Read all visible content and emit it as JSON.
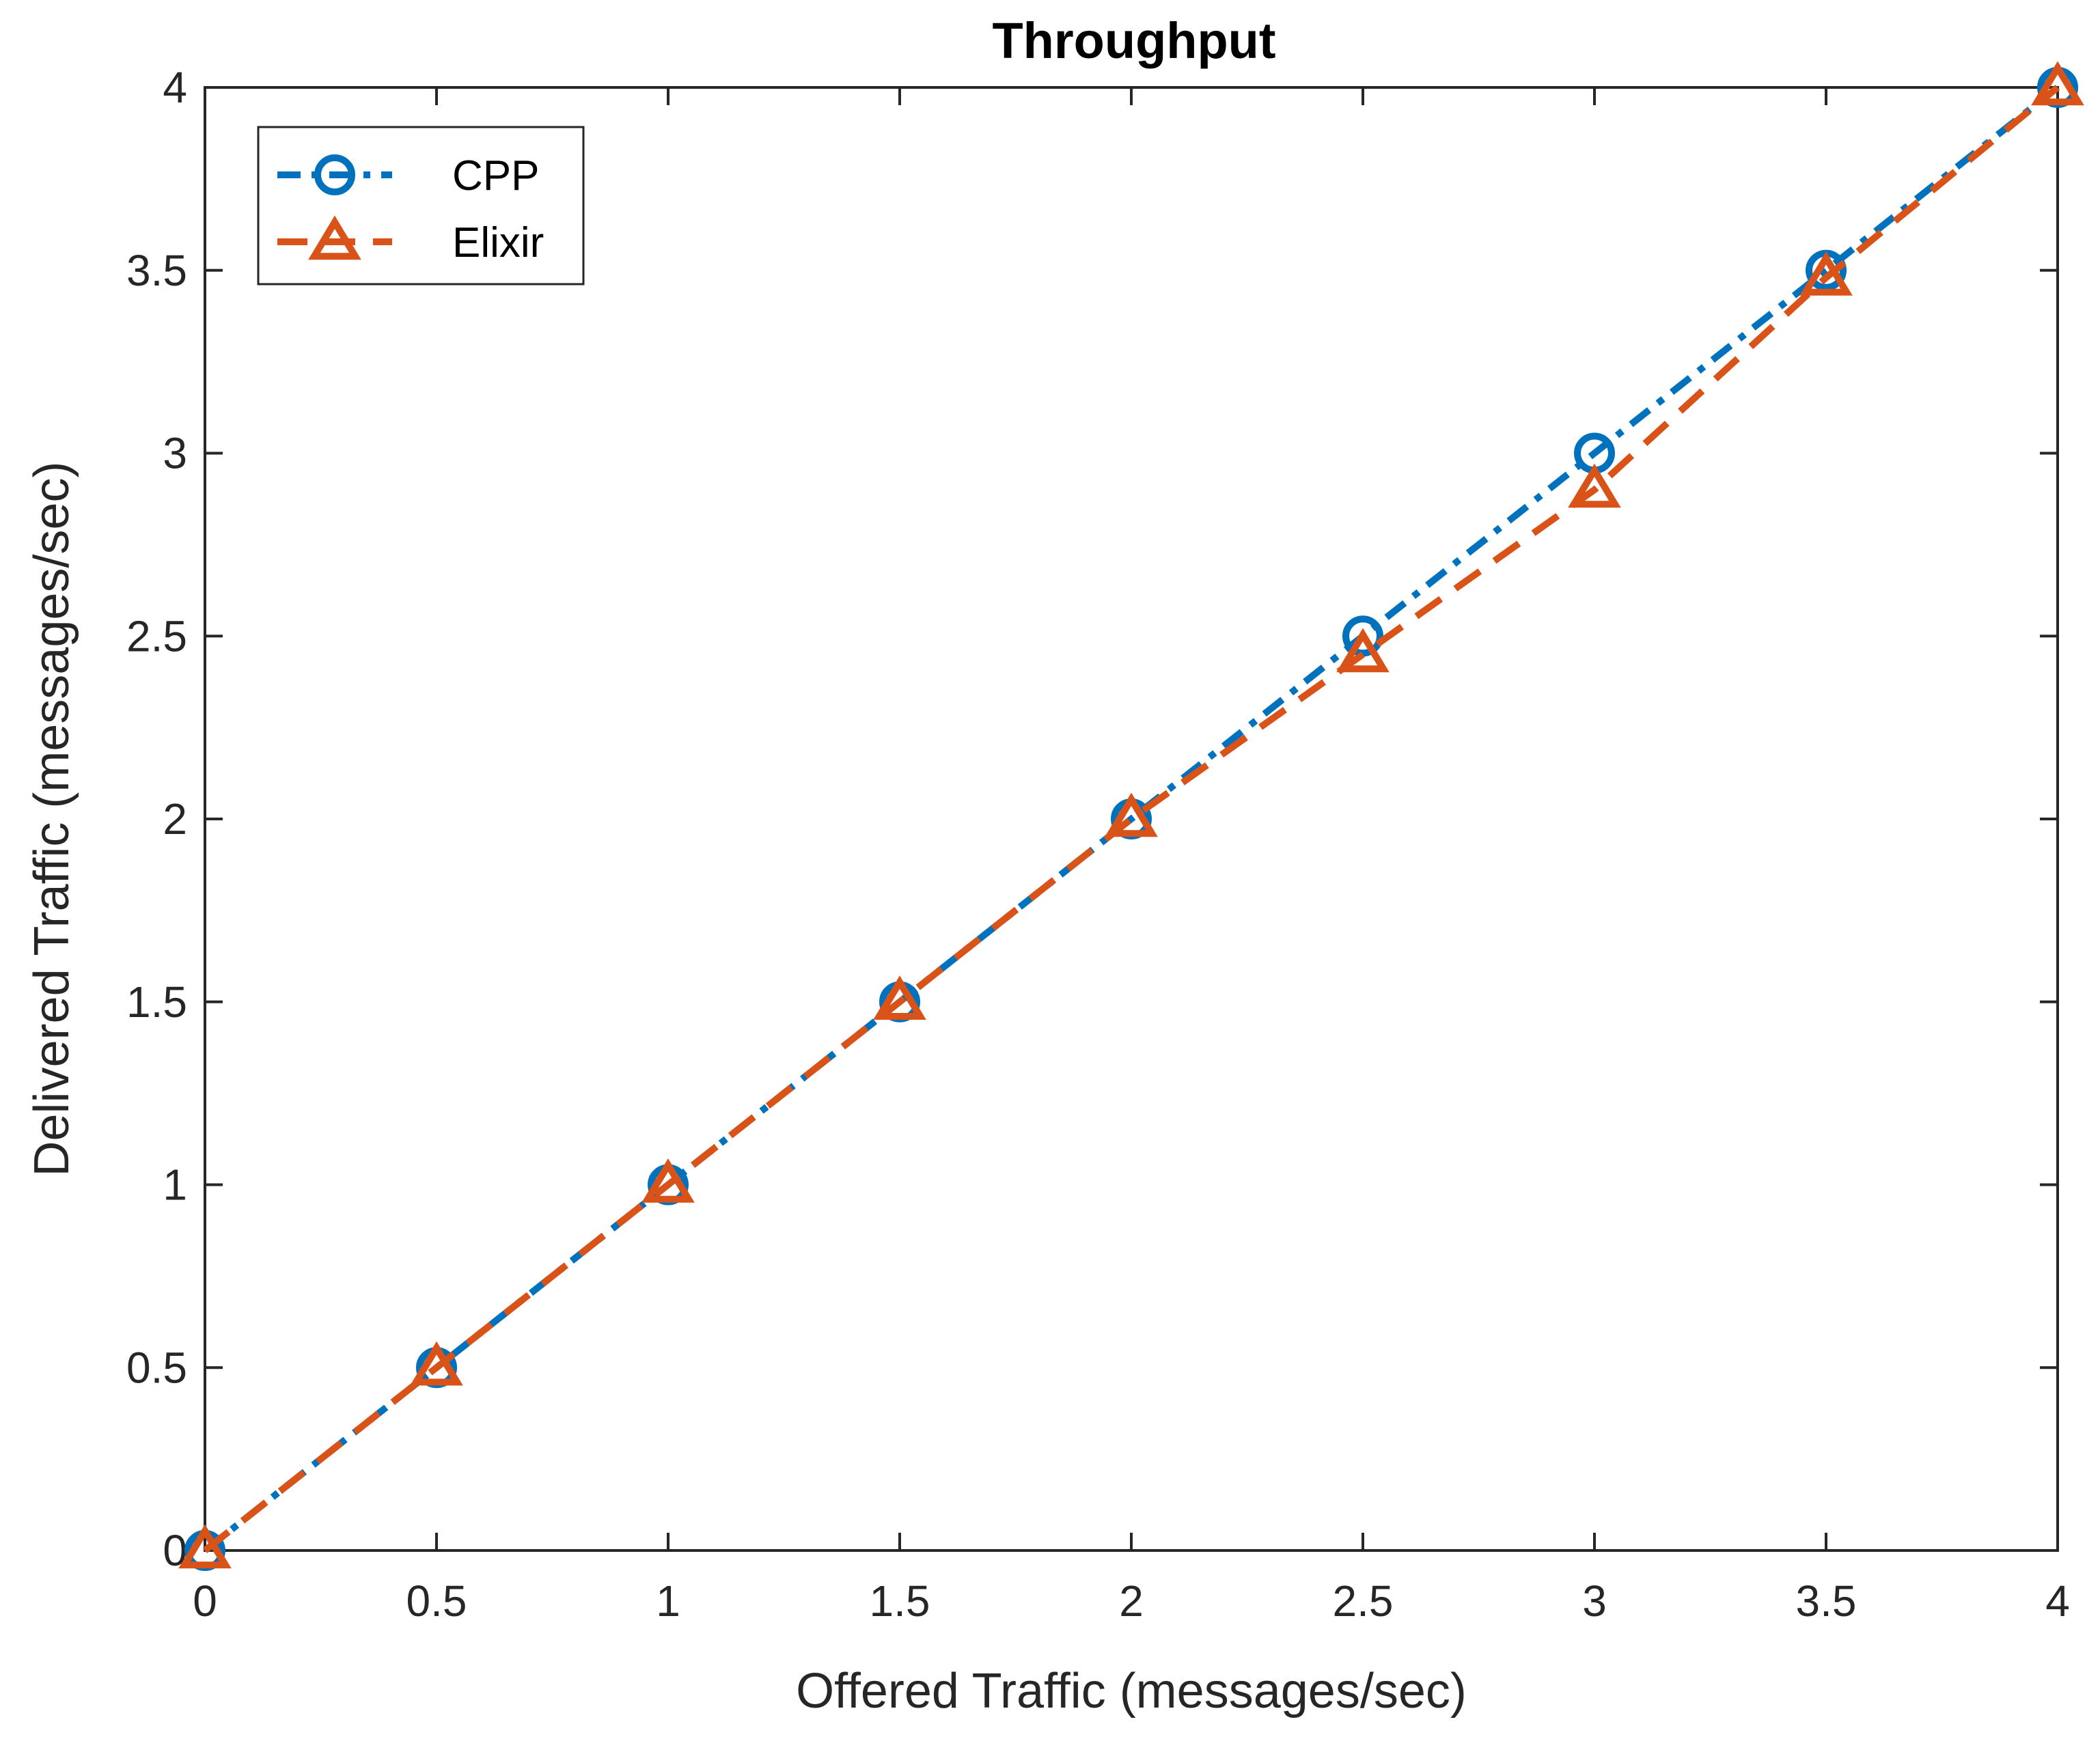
{
  "chart_data": {
    "type": "line",
    "title": "Throughput",
    "xlabel": "Offered Traffic (messages/sec)",
    "ylabel": "Delivered Traffic (messages/sec)",
    "xlim": [
      0,
      4
    ],
    "ylim": [
      0,
      4
    ],
    "xticks": [
      "0",
      "0.5",
      "1",
      "1.5",
      "2",
      "2.5",
      "3",
      "3.5",
      "4"
    ],
    "yticks": [
      "0",
      "0.5",
      "1",
      "1.5",
      "2",
      "2.5",
      "3",
      "3.5",
      "4"
    ],
    "grid": false,
    "legend_position": "top-left",
    "series": [
      {
        "name": "CPP",
        "color": "#0072BD",
        "marker": "circle",
        "line_style": "dash-dot",
        "x": [
          0,
          0.5,
          1,
          1.5,
          2,
          2.5,
          3,
          3.5,
          4
        ],
        "y": [
          0,
          0.5,
          1,
          1.5,
          2,
          2.5,
          3,
          3.5,
          4
        ]
      },
      {
        "name": "Elixir",
        "color": "#D95319",
        "marker": "triangle",
        "line_style": "dashed",
        "x": [
          0,
          0.5,
          1,
          1.5,
          2,
          2.5,
          3,
          3.5,
          4
        ],
        "y": [
          0,
          0.5,
          1,
          1.5,
          2,
          2.45,
          2.9,
          3.48,
          4
        ]
      }
    ]
  }
}
